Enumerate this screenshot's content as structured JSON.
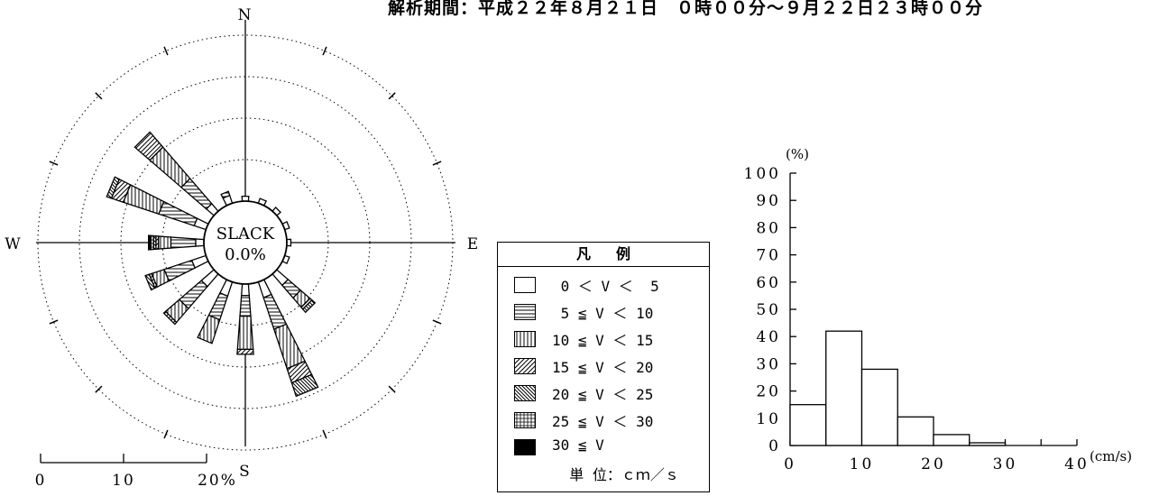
{
  "title": "解析期間：平成２２年８月２１日　０時００分～９月２２日２３時００分",
  "chart_data": [
    {
      "type": "polar-stacked-bar",
      "compass_labels": {
        "north": "N",
        "south": "S",
        "east": "E",
        "west": "W"
      },
      "center_text": [
        "SLACK",
        "0.0%"
      ],
      "radial_unit": "%",
      "radial_ticks": [
        0,
        10,
        20
      ],
      "radial_tick_labels": [
        "0",
        "10",
        "20%"
      ],
      "ring_values": [
        5,
        10,
        15,
        20
      ],
      "speed_bins": [
        "0<V<5",
        "5≦V<10",
        "10≦V<15",
        "15≦V<20",
        "20≦V<25",
        "25≦V<30",
        "30≦V"
      ],
      "directions_deg": [
        0,
        22.5,
        45,
        67.5,
        90,
        112.5,
        135,
        157.5,
        180,
        202.5,
        225,
        247.5,
        270,
        292.5,
        315,
        337.5
      ],
      "series": [
        {
          "direction": 0,
          "values": [
            0.6,
            0,
            0,
            0,
            0,
            0,
            0
          ]
        },
        {
          "direction": 22.5,
          "values": [
            0.6,
            0,
            0,
            0,
            0,
            0,
            0
          ]
        },
        {
          "direction": 45,
          "values": [
            0.6,
            0,
            0,
            0,
            0,
            0,
            0
          ]
        },
        {
          "direction": 67.5,
          "values": [
            0.6,
            0,
            0,
            0,
            0,
            0,
            0
          ]
        },
        {
          "direction": 90,
          "values": [
            0.5,
            0,
            0,
            0,
            0,
            0,
            0
          ]
        },
        {
          "direction": 112.5,
          "values": [
            0.6,
            0,
            0,
            0,
            0,
            0,
            0
          ]
        },
        {
          "direction": 135,
          "values": [
            1.8,
            2.0,
            1.5,
            0.3,
            0.5,
            0,
            0
          ]
        },
        {
          "direction": 157.5,
          "values": [
            2.0,
            4.0,
            5.0,
            1.8,
            1.7,
            0,
            0
          ]
        },
        {
          "direction": 180,
          "values": [
            1.4,
            2.5,
            4.0,
            0.6,
            0,
            0,
            0
          ]
        },
        {
          "direction": 202.5,
          "values": [
            1.8,
            3.0,
            3.0,
            0,
            0,
            0,
            0
          ]
        },
        {
          "direction": 225,
          "values": [
            2.0,
            3.5,
            2.2,
            0.3,
            0,
            0,
            0
          ]
        },
        {
          "direction": 247.5,
          "values": [
            1.8,
            3.5,
            1.6,
            0.3,
            0.5,
            0,
            0
          ]
        },
        {
          "direction": 270,
          "values": [
            1.0,
            3.0,
            1.5,
            0.3,
            0.3,
            0.3,
            0.3
          ]
        },
        {
          "direction": 292.5,
          "values": [
            1.5,
            4.5,
            4.5,
            1.5,
            0.6,
            0,
            0
          ]
        },
        {
          "direction": 315,
          "values": [
            1.2,
            4.0,
            5.0,
            2.4,
            0,
            0,
            0
          ]
        },
        {
          "direction": 337.5,
          "values": [
            1.0,
            0.5,
            0,
            0,
            0,
            0,
            0
          ]
        }
      ]
    },
    {
      "type": "bar",
      "x_bin_edges": [
        0,
        5,
        10,
        15,
        20,
        25,
        30,
        35,
        40
      ],
      "values": [
        15,
        42,
        28,
        10.5,
        4,
        1,
        0,
        0
      ],
      "y_unit": "(%)",
      "x_unit": "(cm/s)",
      "ylim": [
        0,
        100
      ],
      "yticks": [
        0,
        10,
        20,
        30,
        40,
        50,
        60,
        70,
        80,
        90,
        100
      ],
      "xlim": [
        0,
        40
      ],
      "xticks": [
        0,
        10,
        20,
        30,
        40
      ]
    }
  ],
  "legend": {
    "title": "凡例",
    "rows": [
      " 0 ＜ V ＜  5",
      " 5 ≦ V ＜ 10",
      "10 ≦ V ＜ 15",
      "15 ≦ V ＜ 20",
      "20 ≦ V ＜ 25",
      "25 ≦ V ＜ 30",
      "30 ≦ V"
    ],
    "unit": "  単 位：ｃｍ／ｓ"
  }
}
